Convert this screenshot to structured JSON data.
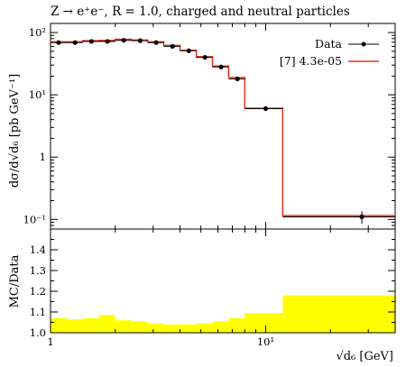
{
  "chart_data": [
    {
      "type": "line",
      "title": "Z → e⁺e⁻, R = 1.0, charged and neutral particles",
      "ylabel": "dσ/d√d₆ [pb GeV⁻¹]",
      "yscale": "log",
      "xscale": "log",
      "ylim": [
        0.07,
        140
      ],
      "xlim": [
        1,
        40
      ],
      "yticks": [
        {
          "value": 0.1,
          "label": "10⁻¹"
        },
        {
          "value": 1,
          "label": "1"
        },
        {
          "value": 10,
          "label": "10¹"
        },
        {
          "value": 100,
          "label": "10²"
        }
      ],
      "legend": {
        "placement": "top-right"
      },
      "series": [
        {
          "name": "Data",
          "color": "#000000",
          "points": [
            {
              "x": 1.09,
              "y": 69,
              "err": 3
            },
            {
              "x": 1.3,
              "y": 69,
              "err": 3
            },
            {
              "x": 1.55,
              "y": 72,
              "err": 3
            },
            {
              "x": 1.84,
              "y": 72,
              "err": 3
            },
            {
              "x": 2.19,
              "y": 75,
              "err": 3
            },
            {
              "x": 2.61,
              "y": 74,
              "err": 3
            },
            {
              "x": 3.1,
              "y": 69,
              "err": 3
            },
            {
              "x": 3.69,
              "y": 60,
              "err": 3
            },
            {
              "x": 4.39,
              "y": 51,
              "err": 2
            },
            {
              "x": 5.22,
              "y": 40,
              "err": 2
            },
            {
              "x": 6.21,
              "y": 28,
              "err": 1.5
            },
            {
              "x": 7.39,
              "y": 18,
              "err": 1
            },
            {
              "x": 10.0,
              "y": 6.0,
              "err": 0.4
            },
            {
              "x": 28.0,
              "y": 0.11,
              "err": 0.025
            }
          ]
        },
        {
          "name": "[7] 4.3e-05",
          "color": "#e2351a",
          "edges": [
            1.0,
            1.19,
            1.41,
            1.68,
            2.0,
            2.38,
            2.83,
            3.36,
            4.0,
            4.76,
            5.66,
            6.73,
            8.0,
            12.0,
            40.0
          ],
          "values": [
            71,
            71,
            74,
            75,
            78,
            76,
            71,
            62,
            52,
            41,
            29,
            19,
            6.1,
            0.115
          ]
        }
      ]
    },
    {
      "type": "area",
      "ylabel": "MC/Data",
      "xlabel": "√d₆ [GeV]",
      "xscale": "log",
      "xlim": [
        1,
        40
      ],
      "ylim": [
        1.0,
        1.5
      ],
      "yticks": [
        {
          "value": 1.0,
          "label": "1.0"
        },
        {
          "value": 1.1,
          "label": "1.1"
        },
        {
          "value": 1.2,
          "label": "1.2"
        },
        {
          "value": 1.3,
          "label": "1.3"
        },
        {
          "value": 1.4,
          "label": "1.4"
        }
      ],
      "xticks": [
        {
          "value": 1,
          "label": "1"
        },
        {
          "value": 10,
          "label": "10¹"
        }
      ],
      "reference": 1.0,
      "band_color": "#ffff00",
      "edges": [
        1.0,
        1.19,
        1.41,
        1.68,
        2.0,
        2.38,
        2.83,
        3.36,
        4.0,
        4.76,
        5.66,
        6.73,
        8.0,
        12.0,
        40.0
      ],
      "band_values": [
        1.07,
        1.065,
        1.07,
        1.085,
        1.06,
        1.055,
        1.045,
        1.04,
        1.04,
        1.045,
        1.055,
        1.07,
        1.095,
        1.18
      ]
    }
  ]
}
